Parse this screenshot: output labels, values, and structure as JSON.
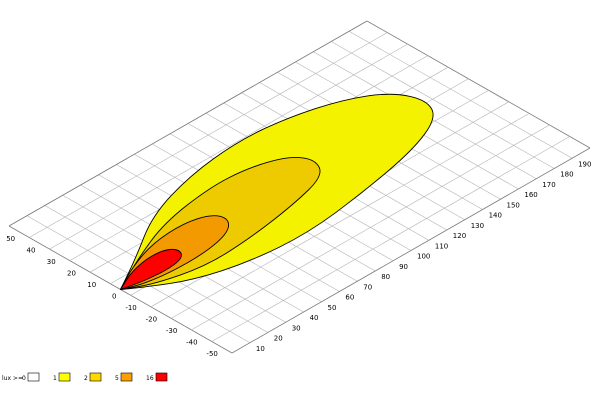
{
  "chart_data": {
    "type": "area",
    "x_ticks": [
      "10",
      "20",
      "30",
      "40",
      "50",
      "60",
      "70",
      "80",
      "90",
      "100",
      "110",
      "120",
      "130",
      "140",
      "150",
      "160",
      "170",
      "180",
      "190"
    ],
    "y_ticks": [
      "50",
      "40",
      "30",
      "20",
      "10",
      "0",
      "-10",
      "-20",
      "-30",
      "-40",
      "-50"
    ],
    "xlim": [
      0,
      200
    ],
    "ylim": [
      -55,
      55
    ],
    "grid": true,
    "legend_position": "bottom-left",
    "legend_title": "lux >=",
    "legend": [
      {
        "label": "0",
        "color": "#ffffff"
      },
      {
        "label": "1",
        "color": "#ffff00"
      },
      {
        "label": "2",
        "color": "#ffd800"
      },
      {
        "label": "5",
        "color": "#ff9f00"
      },
      {
        "label": "16",
        "color": "#ff0000"
      }
    ],
    "series": [
      {
        "level": "1",
        "color": "#f5f200",
        "points": [
          [
            0,
            0
          ],
          [
            20,
            10
          ],
          [
            45,
            24
          ],
          [
            75,
            32
          ],
          [
            105,
            35
          ],
          [
            130,
            33
          ],
          [
            155,
            27
          ],
          [
            172,
            18
          ],
          [
            178,
            6
          ],
          [
            172,
            -4
          ],
          [
            150,
            -12
          ],
          [
            115,
            -18
          ],
          [
            80,
            -22
          ],
          [
            50,
            -20
          ],
          [
            25,
            -14
          ],
          [
            8,
            -5
          ],
          [
            0,
            0
          ]
        ]
      },
      {
        "level": "2",
        "color": "#eecb00",
        "points": [
          [
            0,
            0
          ],
          [
            20,
            9
          ],
          [
            45,
            18
          ],
          [
            75,
            22
          ],
          [
            95,
            21
          ],
          [
            112,
            16
          ],
          [
            118,
            8
          ],
          [
            112,
            -1
          ],
          [
            90,
            -6
          ],
          [
            60,
            -10
          ],
          [
            35,
            -11
          ],
          [
            12,
            -6
          ],
          [
            0,
            0
          ]
        ]
      },
      {
        "level": "5",
        "color": "#f29a00",
        "points": [
          [
            0,
            0
          ],
          [
            15,
            7
          ],
          [
            32,
            12
          ],
          [
            50,
            13
          ],
          [
            62,
            10
          ],
          [
            65,
            4
          ],
          [
            58,
            -2
          ],
          [
            42,
            -5
          ],
          [
            22,
            -5
          ],
          [
            8,
            -3
          ],
          [
            0,
            0
          ]
        ]
      },
      {
        "level": "16",
        "color": "#ff0000",
        "points": [
          [
            0,
            0
          ],
          [
            12,
            5
          ],
          [
            24,
            7
          ],
          [
            33,
            6
          ],
          [
            36,
            2
          ],
          [
            32,
            -2
          ],
          [
            22,
            -3
          ],
          [
            10,
            -2
          ],
          [
            0,
            0
          ]
        ]
      }
    ]
  }
}
